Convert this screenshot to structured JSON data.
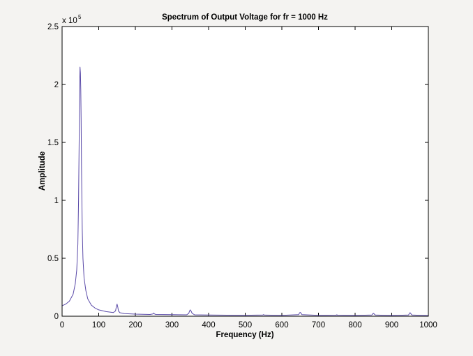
{
  "chart_data": {
    "type": "line",
    "title": "Spectrum of Output Voltage for fr = 1000 Hz",
    "xlabel": "Frequency (Hz)",
    "ylabel": "Amplitude",
    "xlim": [
      0,
      1000
    ],
    "ylim": [
      0,
      250000
    ],
    "x_ticks": [
      "0",
      "100",
      "200",
      "300",
      "400",
      "500",
      "600",
      "700",
      "800",
      "900",
      "1000"
    ],
    "y_ticks": [
      "0",
      "0.5",
      "1",
      "1.5",
      "2",
      "2.5"
    ],
    "y_exponent_base": "x 10",
    "y_exponent_power": "5",
    "grid": false,
    "colors": {
      "line": "#5a4aa8",
      "axes": "#000000",
      "background": "#f4f3f1",
      "plot_area": "#ffffff"
    },
    "series": [
      {
        "x": [
          0,
          10,
          20,
          30,
          36,
          40,
          43,
          45,
          47,
          48,
          49,
          50,
          51,
          52,
          53,
          55,
          57,
          60,
          65,
          70,
          80,
          90,
          100,
          120,
          140,
          146,
          148,
          150,
          152,
          154,
          158,
          170,
          200,
          240,
          248,
          250,
          252,
          256,
          300,
          340,
          346,
          348,
          350,
          352,
          355,
          362,
          400,
          450,
          500,
          548,
          550,
          552,
          600,
          646,
          648,
          650,
          652,
          655,
          700,
          748,
          750,
          752,
          800,
          846,
          848,
          850,
          852,
          855,
          900,
          946,
          948,
          950,
          952,
          955,
          1000
        ],
        "y": [
          9000,
          10500,
          13000,
          19000,
          28000,
          40000,
          62000,
          100000,
          165000,
          200000,
          215000,
          210000,
          195000,
          170000,
          130000,
          75000,
          50000,
          33000,
          22000,
          15000,
          9500,
          7000,
          5500,
          4000,
          3200,
          4500,
          8000,
          10500,
          8000,
          4500,
          3000,
          2300,
          1800,
          1500,
          2000,
          2800,
          2000,
          1500,
          1300,
          1200,
          2500,
          4500,
          5500,
          4500,
          2500,
          1200,
          1000,
          900,
          850,
          1000,
          1400,
          1000,
          800,
          1300,
          2800,
          3300,
          2800,
          1300,
          700,
          900,
          1200,
          900,
          650,
          1100,
          2000,
          2500,
          2000,
          1100,
          600,
          1000,
          2300,
          3000,
          2300,
          1000,
          550
        ]
      }
    ]
  }
}
